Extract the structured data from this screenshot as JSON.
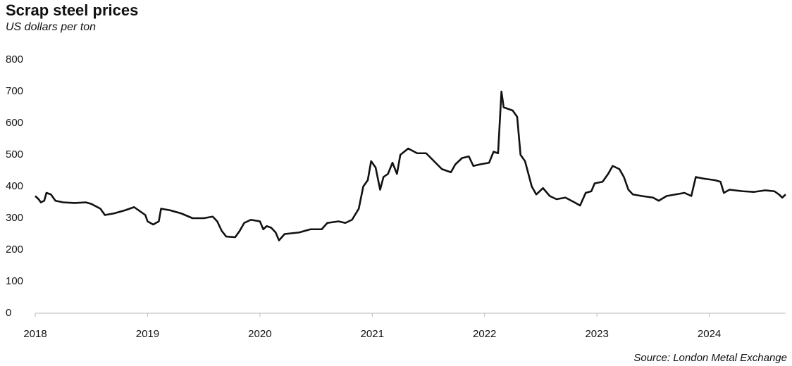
{
  "chart_data": {
    "type": "line",
    "title": "Scrap steel prices",
    "subtitle": "US dollars per ton",
    "source": "Source: London Metal Exchange",
    "xlim": [
      2018,
      2024.68
    ],
    "xticks": [
      2018,
      2019,
      2020,
      2021,
      2022,
      2023,
      2024
    ],
    "ylim": [
      0,
      800
    ],
    "yticks": [
      0,
      100,
      200,
      300,
      400,
      500,
      600,
      700,
      800
    ],
    "grid": false,
    "series": [
      {
        "name": "Scrap steel",
        "color": "#111111",
        "x": [
          2018.0,
          2018.03,
          2018.05,
          2018.08,
          2018.1,
          2018.14,
          2018.18,
          2018.25,
          2018.35,
          2018.45,
          2018.5,
          2018.58,
          2018.62,
          2018.7,
          2018.8,
          2018.88,
          2018.92,
          2018.98,
          2019.0,
          2019.05,
          2019.1,
          2019.12,
          2019.2,
          2019.3,
          2019.4,
          2019.5,
          2019.58,
          2019.62,
          2019.66,
          2019.7,
          2019.78,
          2019.82,
          2019.86,
          2019.92,
          2020.0,
          2020.03,
          2020.06,
          2020.1,
          2020.14,
          2020.17,
          2020.22,
          2020.35,
          2020.45,
          2020.55,
          2020.6,
          2020.7,
          2020.76,
          2020.82,
          2020.88,
          2020.92,
          2020.96,
          2020.99,
          2021.03,
          2021.07,
          2021.1,
          2021.14,
          2021.18,
          2021.22,
          2021.25,
          2021.32,
          2021.4,
          2021.48,
          2021.55,
          2021.62,
          2021.7,
          2021.74,
          2021.8,
          2021.86,
          2021.9,
          2021.96,
          2022.04,
          2022.08,
          2022.12,
          2022.15,
          2022.17,
          2022.25,
          2022.29,
          2022.32,
          2022.36,
          2022.42,
          2022.46,
          2022.52,
          2022.58,
          2022.64,
          2022.72,
          2022.8,
          2022.85,
          2022.9,
          2022.95,
          2022.98,
          2023.05,
          2023.1,
          2023.14,
          2023.2,
          2023.24,
          2023.28,
          2023.32,
          2023.4,
          2023.5,
          2023.55,
          2023.62,
          2023.7,
          2023.78,
          2023.84,
          2023.88,
          2023.95,
          2024.05,
          2024.1,
          2024.13,
          2024.18,
          2024.3,
          2024.4,
          2024.5,
          2024.58,
          2024.62,
          2024.65,
          2024.68
        ],
        "values": [
          370,
          360,
          350,
          355,
          380,
          375,
          355,
          350,
          348,
          350,
          345,
          330,
          310,
          315,
          325,
          335,
          325,
          310,
          290,
          280,
          290,
          330,
          325,
          315,
          300,
          300,
          305,
          290,
          260,
          242,
          240,
          260,
          285,
          295,
          290,
          265,
          275,
          270,
          255,
          230,
          250,
          255,
          265,
          265,
          285,
          290,
          285,
          295,
          330,
          400,
          420,
          480,
          460,
          390,
          430,
          440,
          475,
          440,
          500,
          520,
          505,
          505,
          480,
          455,
          445,
          470,
          490,
          495,
          465,
          470,
          475,
          510,
          505,
          700,
          650,
          640,
          620,
          500,
          480,
          400,
          375,
          395,
          370,
          360,
          365,
          350,
          340,
          380,
          385,
          410,
          415,
          440,
          465,
          455,
          430,
          390,
          375,
          370,
          365,
          355,
          370,
          375,
          380,
          370,
          430,
          425,
          420,
          415,
          380,
          390,
          385,
          383,
          388,
          385,
          375,
          365,
          375
        ]
      }
    ]
  }
}
